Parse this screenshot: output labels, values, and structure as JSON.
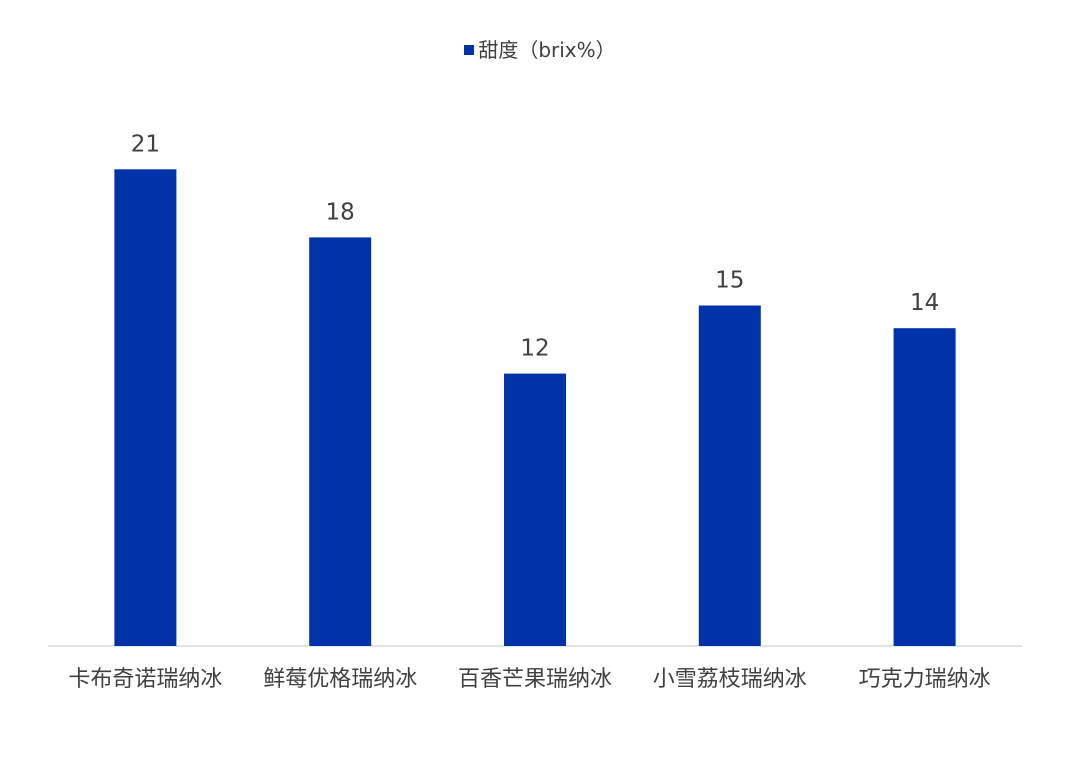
{
  "chart_data": {
    "type": "bar",
    "categories": [
      "卡布奇诺瑞纳冰",
      "鲜莓优格瑞纳冰",
      "百香芒果瑞纳冰",
      "小雪荔枝瑞纳冰",
      "巧克力瑞纳冰"
    ],
    "series": [
      {
        "name": "甜度（brix%）",
        "values": [
          21,
          18,
          12,
          15,
          14
        ],
        "color": "#0033a8"
      }
    ],
    "data_labels": [
      "21",
      "18",
      "12",
      "15",
      "14"
    ],
    "title": "",
    "xlabel": "",
    "ylabel": "",
    "ylim": [
      0,
      22
    ],
    "grid": false,
    "legend_position": "top-center",
    "axis_color": "#d9d9d9",
    "label_color": "#404040"
  }
}
